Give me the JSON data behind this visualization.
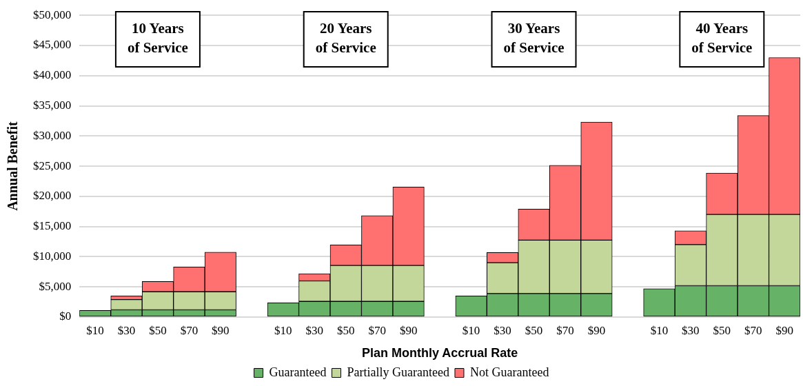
{
  "chart_data": {
    "type": "bar",
    "stacked": true,
    "xlabel": "Plan Monthly Accrual Rate",
    "ylabel": "Annual Benefit",
    "categories": [
      "$10",
      "$30",
      "$50",
      "$70",
      "$90",
      null,
      "$10",
      "$30",
      "$50",
      "$70",
      "$90",
      null,
      "$10",
      "$30",
      "$50",
      "$70",
      "$90",
      null,
      "$10",
      "$30",
      "$50",
      "$70",
      "$90"
    ],
    "series": [
      {
        "name": "Guaranteed",
        "color": "#66b266",
        "values": [
          1100,
          1200,
          1200,
          1200,
          1200,
          null,
          2350,
          2600,
          2600,
          2600,
          2600,
          null,
          3500,
          3900,
          3900,
          3900,
          3900,
          null,
          4700,
          5200,
          5200,
          5200,
          5200
        ]
      },
      {
        "name": "Partially Guaranteed",
        "color": "#c4d79b",
        "values": [
          null,
          1700,
          3000,
          3000,
          3000,
          null,
          null,
          3400,
          5950,
          5950,
          5950,
          null,
          null,
          5100,
          8850,
          8850,
          8850,
          null,
          null,
          6800,
          11800,
          11800,
          11800
        ]
      },
      {
        "name": "Not Guaranteed",
        "color": "#ff7070",
        "values": [
          null,
          600,
          1700,
          4100,
          6550,
          null,
          null,
          1200,
          3400,
          8250,
          13000,
          null,
          null,
          1700,
          5150,
          12400,
          19550,
          null,
          null,
          2300,
          6850,
          16400,
          26000
        ]
      }
    ],
    "ylim": [
      0,
      50000
    ],
    "yticks": [
      {
        "value": 0,
        "label": "$0"
      },
      {
        "value": 5000,
        "label": "$5,000"
      },
      {
        "value": 10000,
        "label": "$10,000"
      },
      {
        "value": 15000,
        "label": "$15,000"
      },
      {
        "value": 20000,
        "label": "$20,000"
      },
      {
        "value": 25000,
        "label": "$25,000"
      },
      {
        "value": 30000,
        "label": "$30,000"
      },
      {
        "value": 35000,
        "label": "$35,000"
      },
      {
        "value": 40000,
        "label": "$40,000"
      },
      {
        "value": 45000,
        "label": "$45,000"
      },
      {
        "value": 50000,
        "label": "$50,000"
      }
    ],
    "grid": "y",
    "legend": "bottom",
    "annotations": [
      "10 Years of Service",
      "20 Years of Service",
      "30 Years of Service",
      "40 Years of Service"
    ]
  }
}
